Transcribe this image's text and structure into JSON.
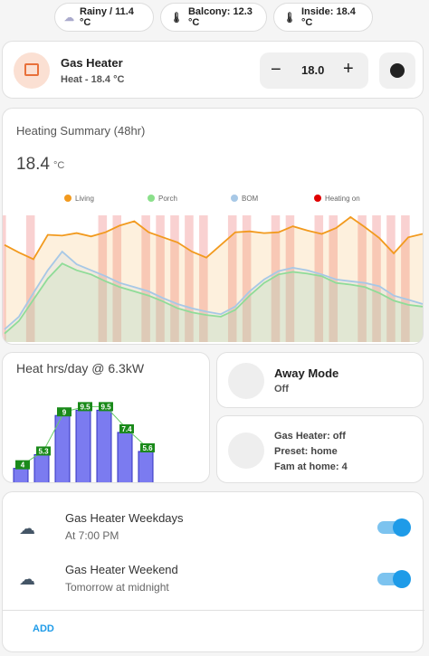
{
  "chips": [
    {
      "label": "Rainy / 11.4 °C"
    },
    {
      "label": "Balcony: 12.3 °C"
    },
    {
      "label": "Inside: 18.4 °C"
    }
  ],
  "thermostat": {
    "name": "Gas Heater",
    "state": "Heat - 18.4 °C",
    "setpoint": "18.0"
  },
  "heating_summary": {
    "title": "Heating Summary (48hr)",
    "current": "18.4",
    "unit": "°C",
    "chart_data": {
      "type": "line",
      "ylim": [
        8,
        23
      ],
      "series": [
        {
          "name": "Living",
          "color": "#f29a1e",
          "values": [
            19.5,
            18.6,
            17.8,
            20.7,
            20.6,
            20.9,
            20.5,
            21.0,
            21.8,
            22.3,
            21.0,
            20.4,
            19.8,
            18.7,
            18.0,
            19.5,
            21.0,
            21.1,
            20.9,
            21.0,
            21.7,
            21.2,
            20.8,
            21.5,
            22.8,
            21.6,
            20.3,
            18.5,
            20.4,
            20.8
          ]
        },
        {
          "name": "Porch",
          "color": "#8be08b",
          "values": [
            9.0,
            10.5,
            13.0,
            15.5,
            17.3,
            16.5,
            16.0,
            15.2,
            14.5,
            14.0,
            13.5,
            12.8,
            12.0,
            11.5,
            11.2,
            11.0,
            11.8,
            13.5,
            15.0,
            16.0,
            16.3,
            16.1,
            15.8,
            15.0,
            14.8,
            14.5,
            13.8,
            12.9,
            12.4,
            12.2
          ]
        },
        {
          "name": "BOM",
          "color": "#a7c8e6",
          "values": [
            9.5,
            11.0,
            13.8,
            16.5,
            18.7,
            17.2,
            16.5,
            15.8,
            15.0,
            14.5,
            14.0,
            13.2,
            12.5,
            12.0,
            11.6,
            11.3,
            12.2,
            14.0,
            15.4,
            16.4,
            16.8,
            16.5,
            16.0,
            15.4,
            15.2,
            15.0,
            14.6,
            13.5,
            13.0,
            12.5
          ]
        }
      ],
      "heating_on": {
        "name": "Heating on",
        "color": "#e00000",
        "values": [
          1,
          0,
          1,
          0,
          0,
          0,
          0,
          1,
          1,
          0,
          1,
          1,
          1,
          1,
          1,
          0,
          1,
          1,
          0,
          1,
          1,
          0,
          1,
          1,
          0,
          1,
          1,
          1,
          1,
          0
        ]
      }
    }
  },
  "heat_hours": {
    "title": "Heat hrs/day @ 6.3kW",
    "chart_data": {
      "type": "bar",
      "values": [
        4,
        5.3,
        9,
        9.5,
        9.5,
        7.4,
        5.6
      ],
      "color": "#7b7bf0",
      "ylim": [
        2.6,
        11.5
      ]
    }
  },
  "away_mode": {
    "title": "Away Mode",
    "state": "Off"
  },
  "status": {
    "lines": [
      "Gas Heater: off",
      "Preset: home",
      "Fam at home: 4"
    ]
  },
  "schedules": {
    "items": [
      {
        "name": "Gas Heater Weekdays",
        "time": "At 7:00 PM"
      },
      {
        "name": "Gas Heater Weekend",
        "time": "Tomorrow at midnight"
      }
    ],
    "add": "ADD"
  }
}
